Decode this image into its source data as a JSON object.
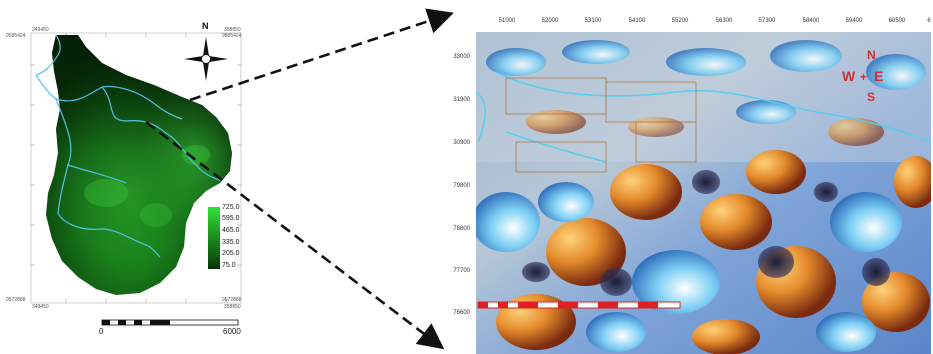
{
  "left_map": {
    "north_label": "N",
    "corner_coords": {
      "top_left_x": "349450",
      "top_left_y": "9585424",
      "top_right_x": "358850",
      "top_right_y": "9585424",
      "bottom_left_x": "349450",
      "bottom_left_y": "9572888",
      "bottom_right_x": "358850",
      "bottom_right_y": "9572888"
    },
    "legend": {
      "labels": [
        "725.0",
        "595.0",
        "465.0",
        "335.0",
        "205.0",
        "75.0"
      ],
      "colors": [
        "#36e23a",
        "#29be2c",
        "#1f9c22",
        "#167a18",
        "#0e5a10",
        "#072f08"
      ]
    },
    "scale_bar": {
      "start": "0",
      "end": "6000"
    },
    "colors": {
      "terrain": "#0f5e14",
      "river": "#4fc3e6",
      "frame": "#bbbbbb"
    }
  },
  "right_map": {
    "top_ticks": [
      "51000",
      "52000",
      "53100",
      "54100",
      "55200",
      "56300",
      "57300",
      "58400",
      "59400",
      "60500",
      "6"
    ],
    "left_ticks": [
      "33000",
      "31900",
      "30900",
      "79800",
      "78800",
      "77700",
      "76600"
    ],
    "compass": {
      "n": "N",
      "w": "W",
      "e": "E",
      "s": "S"
    },
    "colors": {
      "compass": "#d32f2f",
      "scale_red": "#e02020"
    }
  },
  "connectors": {
    "color": "#111111"
  }
}
